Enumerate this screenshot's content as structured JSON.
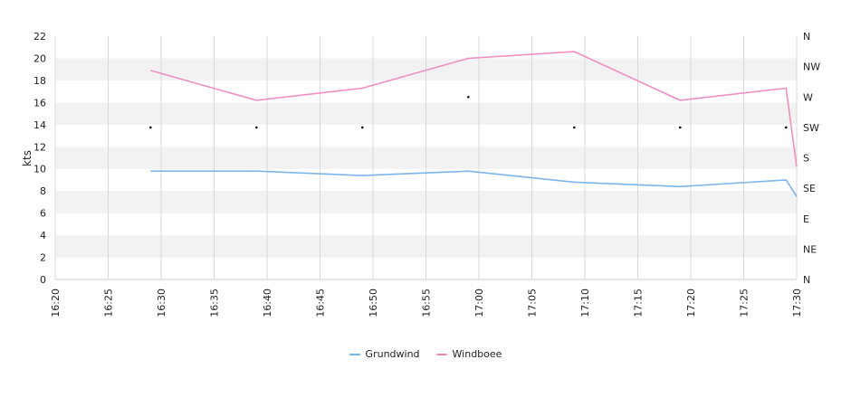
{
  "chart_data": {
    "type": "line",
    "x": [
      "16:29",
      "16:39",
      "16:49",
      "16:59",
      "17:09",
      "17:19",
      "17:29",
      "17:30"
    ],
    "series": [
      {
        "name": "Grundwind",
        "color": "#7cb5ec",
        "values": [
          9.8,
          9.8,
          9.4,
          9.8,
          8.8,
          8.4,
          9.0,
          7.5
        ]
      },
      {
        "name": "Windboee",
        "color": "#f08fbf",
        "values": [
          18.9,
          16.2,
          17.3,
          20.0,
          20.6,
          16.2,
          17.3,
          10.2
        ]
      }
    ],
    "direction": {
      "x": [
        "16:29",
        "16:39",
        "16:49",
        "16:59",
        "17:09",
        "17:19",
        "17:29"
      ],
      "values": [
        "SW",
        "SW",
        "SW",
        "W",
        "SW",
        "SW",
        "SW"
      ]
    },
    "ylabel": "kts",
    "ylim": [
      0,
      22
    ],
    "yticks": [
      "0",
      "2",
      "4",
      "6",
      "8",
      "10",
      "12",
      "14",
      "16",
      "18",
      "20",
      "22"
    ],
    "xlim": [
      "16:20",
      "17:30"
    ],
    "xticks": [
      "16:20",
      "16:25",
      "16:30",
      "16:35",
      "16:40",
      "16:45",
      "16:50",
      "16:55",
      "17:00",
      "17:05",
      "17:10",
      "17:15",
      "17:20",
      "17:25",
      "17:30"
    ],
    "right_axis_ticks": [
      "N",
      "NE",
      "E",
      "SE",
      "S",
      "SW",
      "W",
      "NW",
      "N"
    ],
    "grid": true,
    "legend": "bottom"
  }
}
